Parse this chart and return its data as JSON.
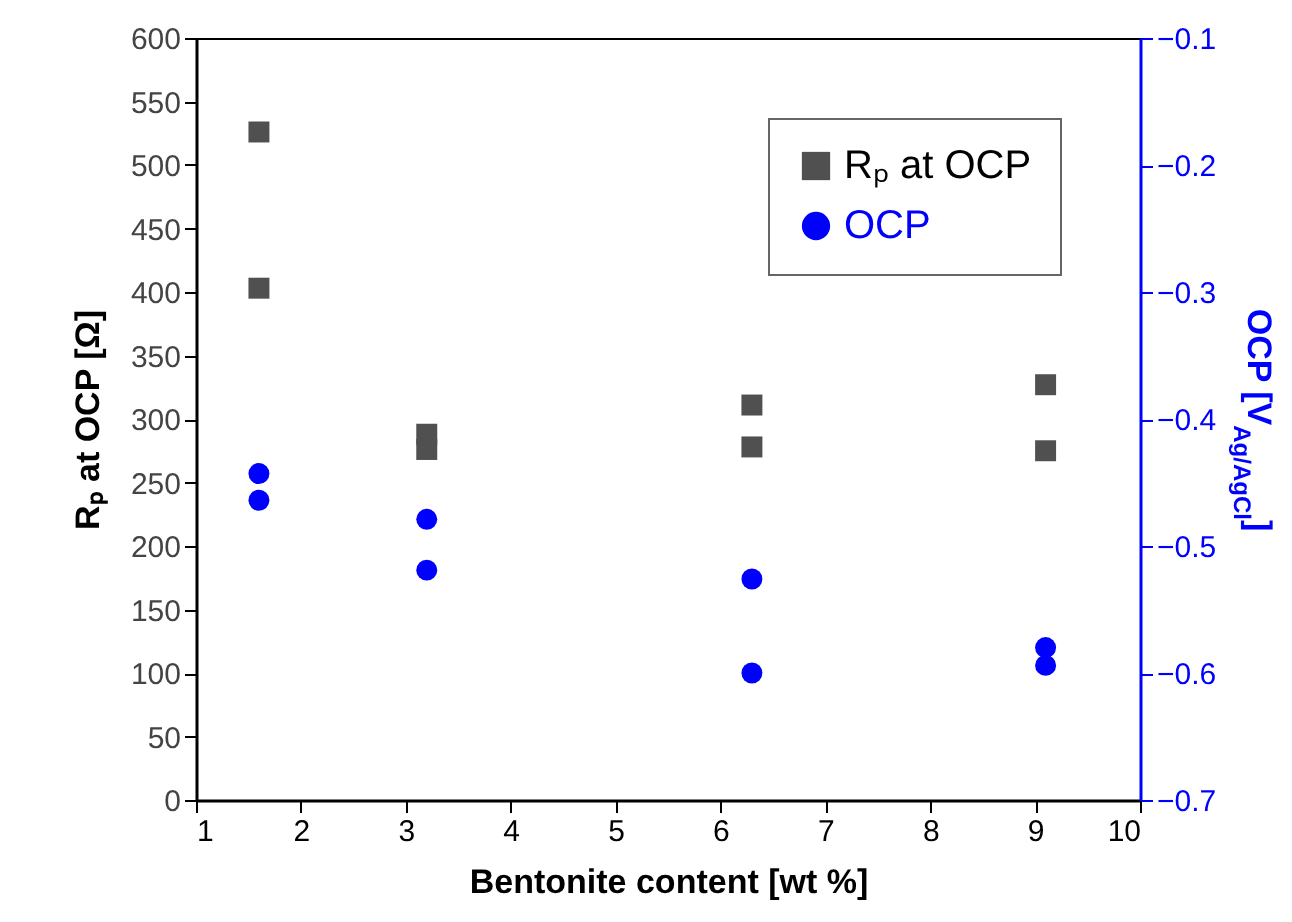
{
  "chart_data": {
    "type": "scatter",
    "xlabel": "Bentonite content [wt %]",
    "ylabel": "Rₚ at OCP [Ω]",
    "y2label": "OCP [V$_{Ag/AgCl}$]",
    "xlim": [
      1,
      10
    ],
    "xticks": [
      1,
      2,
      3,
      4,
      5,
      6,
      7,
      8,
      9,
      10
    ],
    "ylim": [
      0,
      600
    ],
    "yticks": [
      0,
      50,
      100,
      150,
      200,
      250,
      300,
      350,
      400,
      450,
      500,
      550,
      600
    ],
    "y2lim": [
      -0.7,
      -0.1
    ],
    "y2ticks": [
      -0.7,
      -0.6,
      -0.5,
      -0.4,
      -0.3,
      -0.2,
      -0.1
    ],
    "legend": "top right",
    "grid": false,
    "series": [
      {
        "name": "Rₚ at OCP",
        "color": "#505050",
        "marker": "square",
        "x": [
          1.6,
          1.6,
          3.2,
          3.2,
          6.3,
          6.3,
          9.1,
          9.1
        ],
        "values": [
          526,
          403,
          288,
          276,
          311,
          278,
          327,
          275
        ]
      },
      {
        "name": "OCP",
        "color": "#0000ff",
        "marker": "circle",
        "axis": "y2",
        "x": [
          1.6,
          1.6,
          3.2,
          3.2,
          6.3,
          6.3,
          9.1,
          9.1
        ],
        "values": [
          -0.443,
          -0.464,
          -0.479,
          -0.519,
          -0.526,
          -0.6,
          -0.58,
          -0.594
        ]
      }
    ]
  }
}
